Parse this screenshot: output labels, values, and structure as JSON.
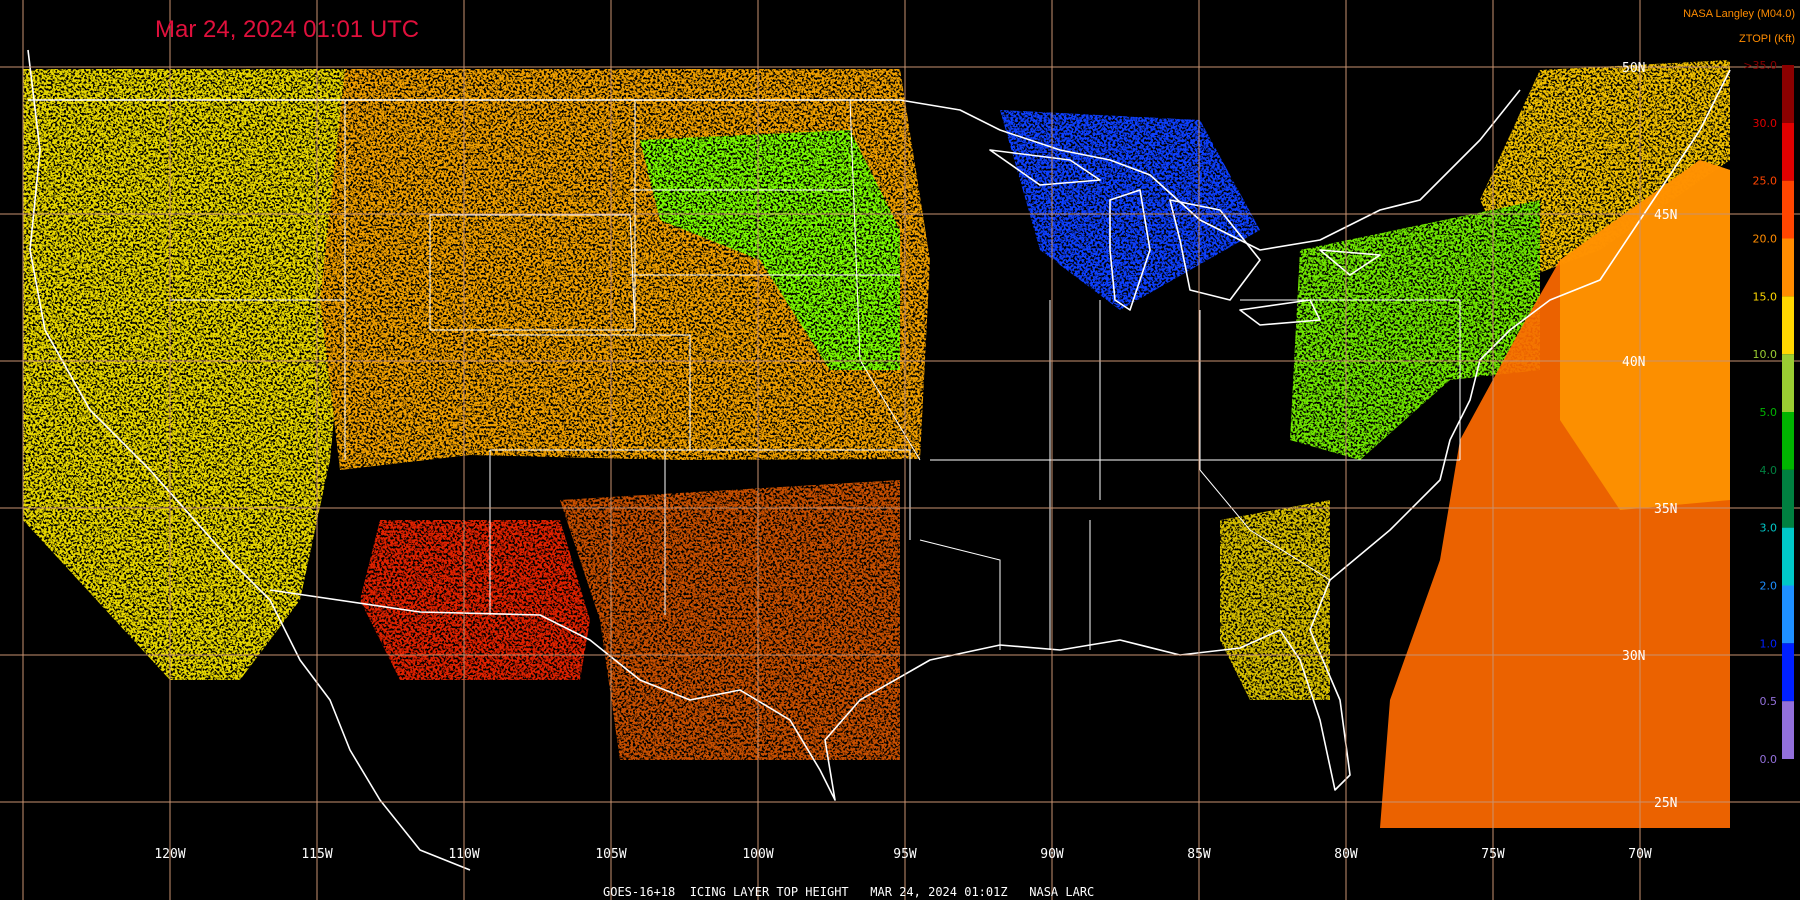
{
  "header": {
    "title": "Mar 24, 2024 01:01 UTC",
    "source": "NASA Langley (M04.0)"
  },
  "legend": {
    "title": "ZTOPI (Kft)",
    "labels": [
      ">35.0",
      "30.0",
      "25.0",
      "20.0",
      "15.0",
      "10.0",
      "5.0",
      "4.0",
      "3.0",
      "2.0",
      "1.0",
      "0.5",
      "0.0"
    ],
    "colors": [
      "#8b0000",
      "#e00000",
      "#ff4500",
      "#ff8c00",
      "#ffd700",
      "#9acd32",
      "#00b400",
      "#008040",
      "#00c8c8",
      "#1e90ff",
      "#0020ff",
      "#9370db"
    ]
  },
  "grid": {
    "longitudes": [
      "120W",
      "115W",
      "110W",
      "105W",
      "100W",
      "95W",
      "90W",
      "85W",
      "80W",
      "75W",
      "70W"
    ],
    "latitudes": [
      "50N",
      "45N",
      "40N",
      "35N",
      "30N",
      "25N"
    ]
  },
  "footer": "GOES-16+18  ICING LAYER TOP HEIGHT   MAR 24, 2024 01:01Z   NASA LARC"
}
